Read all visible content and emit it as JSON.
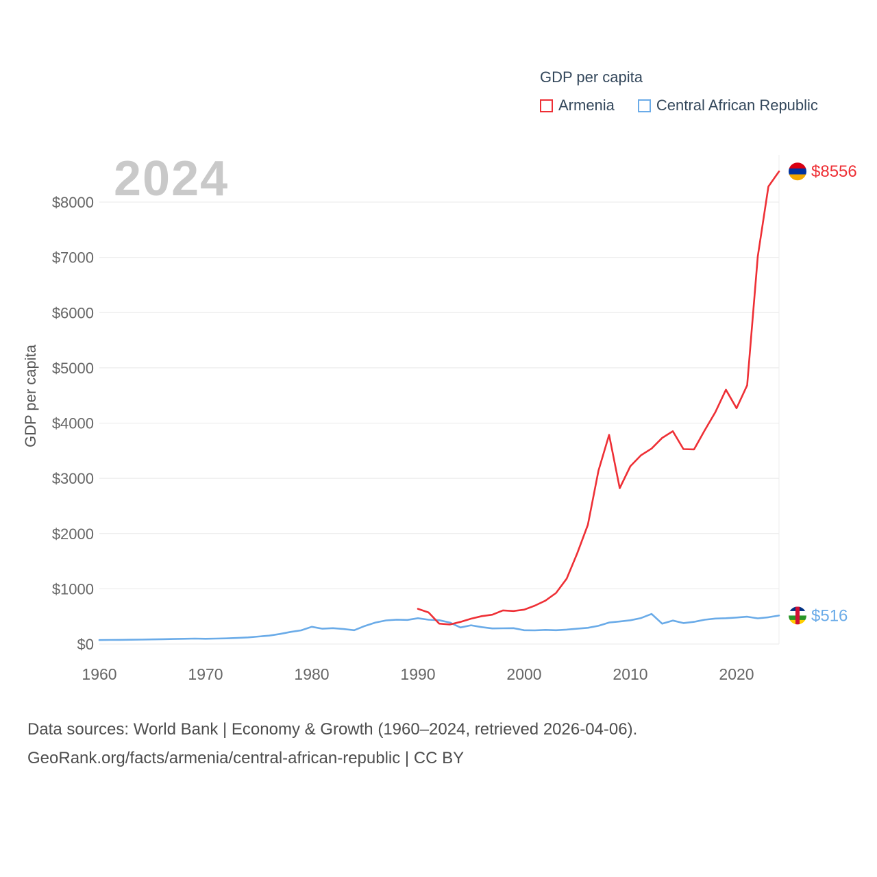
{
  "legend": {
    "title": "GDP per capita",
    "items": [
      {
        "label": "Armenia"
      },
      {
        "label": "Central African Republic"
      }
    ]
  },
  "watermark_year": "2024",
  "y_axis_label": "GDP per capita",
  "footer": {
    "line1": "Data sources: World Bank | Economy & Growth (1960–2024, retrieved 2026-04-06).",
    "line2": "GeoRank.org/facts/armenia/central-african-republic | CC BY"
  },
  "flags": {
    "armenia": {
      "layout": "horizontal",
      "stripes": [
        "#d90012",
        "#0033a0",
        "#f2a800"
      ]
    },
    "central-african-republic": {
      "layout": "horizontal-with-vertical",
      "stripes": [
        "#003082",
        "#ffffff",
        "#289728",
        "#ffce00"
      ],
      "vertical": "#d21034"
    }
  },
  "chart_data": {
    "type": "line",
    "title": "GDP per capita",
    "xlabel": "",
    "ylabel": "GDP per capita",
    "x_range": [
      1960,
      2024
    ],
    "y_range": [
      0,
      8556
    ],
    "grid": "horizontal",
    "legend_position": "top-right",
    "x_ticks": [
      1960,
      1970,
      1980,
      1990,
      2000,
      2010,
      2020
    ],
    "y_ticks": [
      {
        "value": 0,
        "label": "$0"
      },
      {
        "value": 1000,
        "label": "$1000"
      },
      {
        "value": 2000,
        "label": "$2000"
      },
      {
        "value": 3000,
        "label": "$3000"
      },
      {
        "value": 4000,
        "label": "$4000"
      },
      {
        "value": 5000,
        "label": "$5000"
      },
      {
        "value": 6000,
        "label": "$6000"
      },
      {
        "value": 7000,
        "label": "$7000"
      },
      {
        "value": 8000,
        "label": "$8000"
      }
    ],
    "series": [
      {
        "id": "armenia",
        "name": "Armenia",
        "color": "#ee2f35",
        "flag": "armenia",
        "end_label": "$8556",
        "x": [
          1990,
          1991,
          1992,
          1993,
          1994,
          1995,
          1996,
          1997,
          1998,
          1999,
          2000,
          2001,
          2002,
          2003,
          2004,
          2005,
          2006,
          2007,
          2008,
          2009,
          2010,
          2011,
          2012,
          2013,
          2014,
          2015,
          2016,
          2017,
          2018,
          2019,
          2020,
          2021,
          2022,
          2023,
          2024
        ],
        "values": [
          637,
          572,
          369,
          354,
          401,
          459,
          505,
          531,
          609,
          598,
          623,
          694,
          785,
          924,
          1182,
          1644,
          2158,
          3139,
          3787,
          2822,
          3218,
          3417,
          3538,
          3732,
          3852,
          3529,
          3524,
          3869,
          4196,
          4604,
          4269,
          4685,
          7018,
          8282,
          8556
        ]
      },
      {
        "id": "central-african-republic",
        "name": "Central African Republic",
        "color": "#6aabe8",
        "flag": "central-african-republic",
        "end_label": "$516",
        "x": [
          1960,
          1961,
          1962,
          1963,
          1964,
          1965,
          1966,
          1967,
          1968,
          1969,
          1970,
          1971,
          1972,
          1973,
          1974,
          1975,
          1976,
          1977,
          1978,
          1979,
          1980,
          1981,
          1982,
          1983,
          1984,
          1985,
          1986,
          1987,
          1988,
          1989,
          1990,
          1991,
          1992,
          1993,
          1994,
          1995,
          1996,
          1997,
          1998,
          1999,
          2000,
          2001,
          2002,
          2003,
          2004,
          2005,
          2006,
          2007,
          2008,
          2009,
          2010,
          2011,
          2012,
          2013,
          2014,
          2015,
          2016,
          2017,
          2018,
          2019,
          2020,
          2021,
          2022,
          2023,
          2024
        ],
        "values": [
          72,
          74,
          76,
          78,
          81,
          84,
          88,
          92,
          95,
          99,
          96,
          99,
          103,
          110,
          120,
          136,
          152,
          182,
          220,
          248,
          312,
          278,
          288,
          272,
          250,
          328,
          390,
          428,
          442,
          436,
          468,
          440,
          432,
          390,
          300,
          340,
          306,
          283,
          285,
          288,
          250,
          248,
          257,
          250,
          262,
          278,
          294,
          330,
          390,
          408,
          430,
          470,
          545,
          368,
          425,
          380,
          402,
          440,
          462,
          468,
          480,
          495,
          465,
          485,
          516
        ]
      }
    ]
  }
}
